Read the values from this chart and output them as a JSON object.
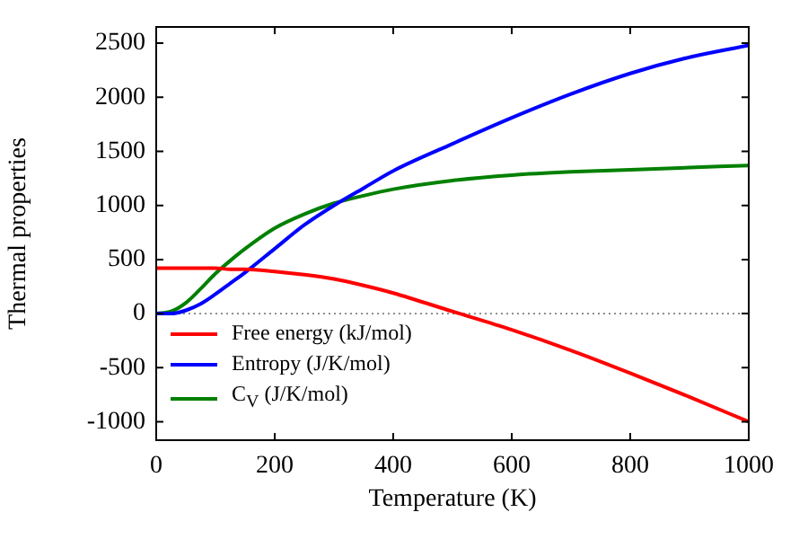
{
  "chart_data": {
    "type": "line",
    "xlabel": "Temperature (K)",
    "ylabel": "Thermal properties",
    "x": [
      0,
      25,
      50,
      75,
      100,
      125,
      150,
      200,
      250,
      300,
      350,
      400,
      500,
      600,
      700,
      800,
      900,
      1000
    ],
    "series": [
      {
        "name": "Free energy (kJ/mol)",
        "color": "#ff0000",
        "values": [
          420,
          420,
          420,
          420,
          420,
          410,
          410,
          390,
          360,
          320,
          260,
          190,
          20,
          -150,
          -340,
          -550,
          -770,
          -1000
        ]
      },
      {
        "name": "Entropy (J/K/mol)",
        "color": "#0000ff",
        "values": [
          0,
          0,
          30,
          90,
          180,
          280,
          380,
          600,
          820,
          1000,
          1160,
          1320,
          1570,
          1810,
          2030,
          2220,
          2370,
          2480
        ]
      },
      {
        "name": "C$_{V}$ (J/K/mol)",
        "color": "#008000",
        "values": [
          0,
          20,
          100,
          230,
          370,
          490,
          600,
          790,
          920,
          1020,
          1090,
          1150,
          1230,
          1280,
          1310,
          1330,
          1350,
          1370
        ]
      }
    ],
    "xlim": [
      0,
      1000
    ],
    "xticks": [
      0,
      200,
      400,
      600,
      800,
      1000
    ],
    "ylim": [
      -1170,
      2650
    ],
    "yticks": [
      -1000,
      -500,
      0,
      500,
      1000,
      1500,
      2000,
      2500
    ],
    "ref_lines": [
      {
        "axis": "y",
        "value": 0,
        "color": "#808080",
        "line_style": "dotted"
      }
    ],
    "grid": false,
    "legend": "bottom left",
    "marker": "none",
    "line_style": "solid"
  }
}
